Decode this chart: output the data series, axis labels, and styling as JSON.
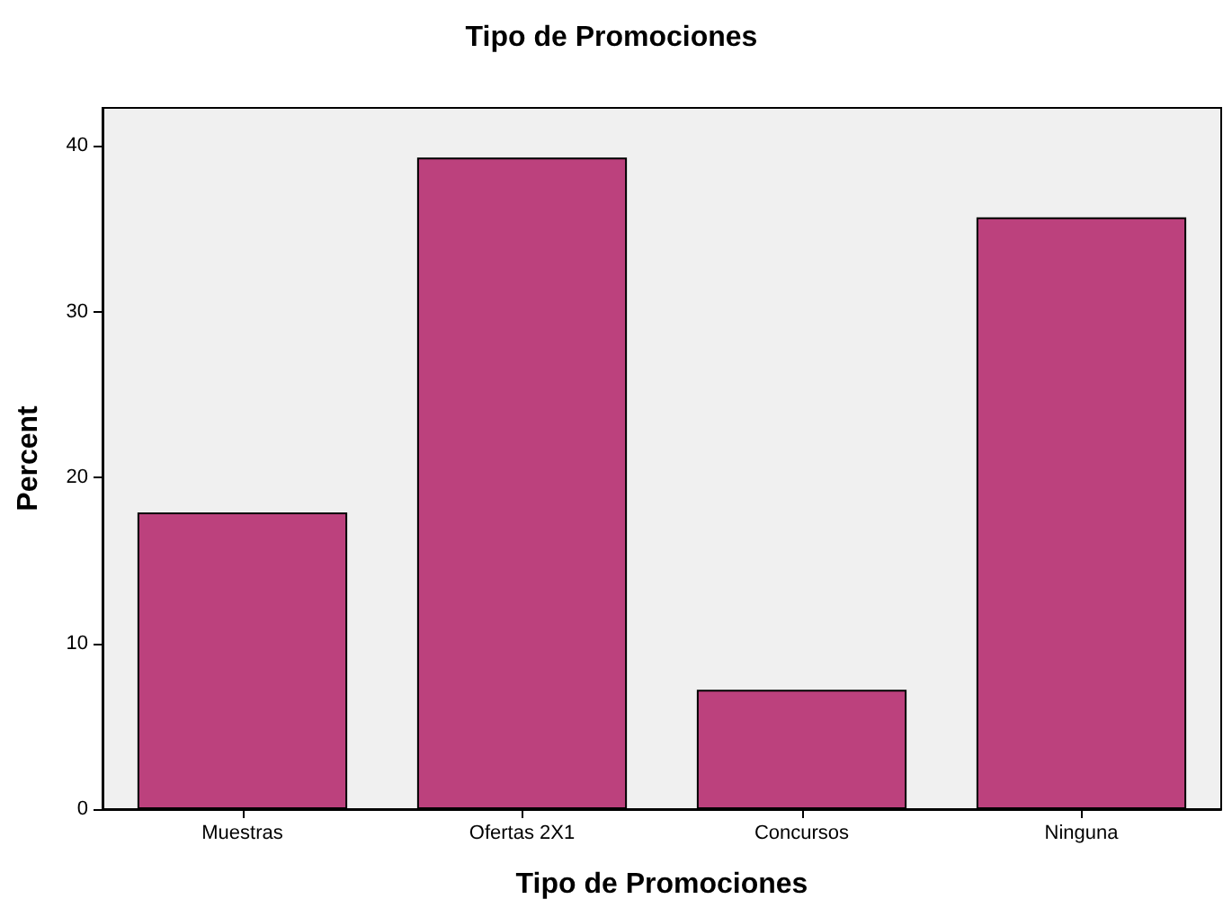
{
  "chart_data": {
    "type": "bar",
    "title": "Tipo de Promociones",
    "xlabel": "Tipo de Promociones",
    "ylabel": "Percent",
    "categories": [
      "Muestras",
      "Ofertas 2X1",
      "Concursos",
      "Ninguna"
    ],
    "values": [
      17.9,
      39.3,
      7.2,
      35.7
    ],
    "color": "#bc417d",
    "ylim": [
      0,
      42.3
    ],
    "yticks": [
      0,
      10,
      20,
      30,
      40
    ],
    "grid": false
  }
}
